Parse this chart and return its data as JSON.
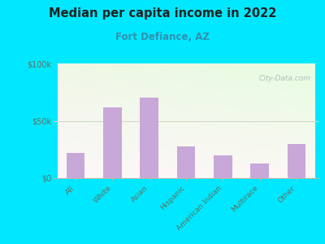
{
  "title": "Median per capita income in 2022",
  "subtitle": "Fort Defiance, AZ",
  "categories": [
    "All",
    "White",
    "Asian",
    "Hispanic",
    "American Indian",
    "Multirace",
    "Other"
  ],
  "values": [
    22000,
    62000,
    70000,
    28000,
    20000,
    13000,
    30000
  ],
  "bar_color": "#c8a8d8",
  "ylim": [
    0,
    100000
  ],
  "yticks": [
    0,
    50000,
    100000
  ],
  "ytick_labels": [
    "$0",
    "$50k",
    "$100k"
  ],
  "background_outer": "#00e8ff",
  "background_inner_colors": [
    "#f0f8e8",
    "#e8f5e0",
    "#f8faf0",
    "#ffffff"
  ],
  "title_color": "#222222",
  "subtitle_color": "#3090b0",
  "tick_color": "#607060",
  "watermark": "City-Data.com",
  "grid_color": "#d0d8c8",
  "spine_color": "#b0bab0"
}
